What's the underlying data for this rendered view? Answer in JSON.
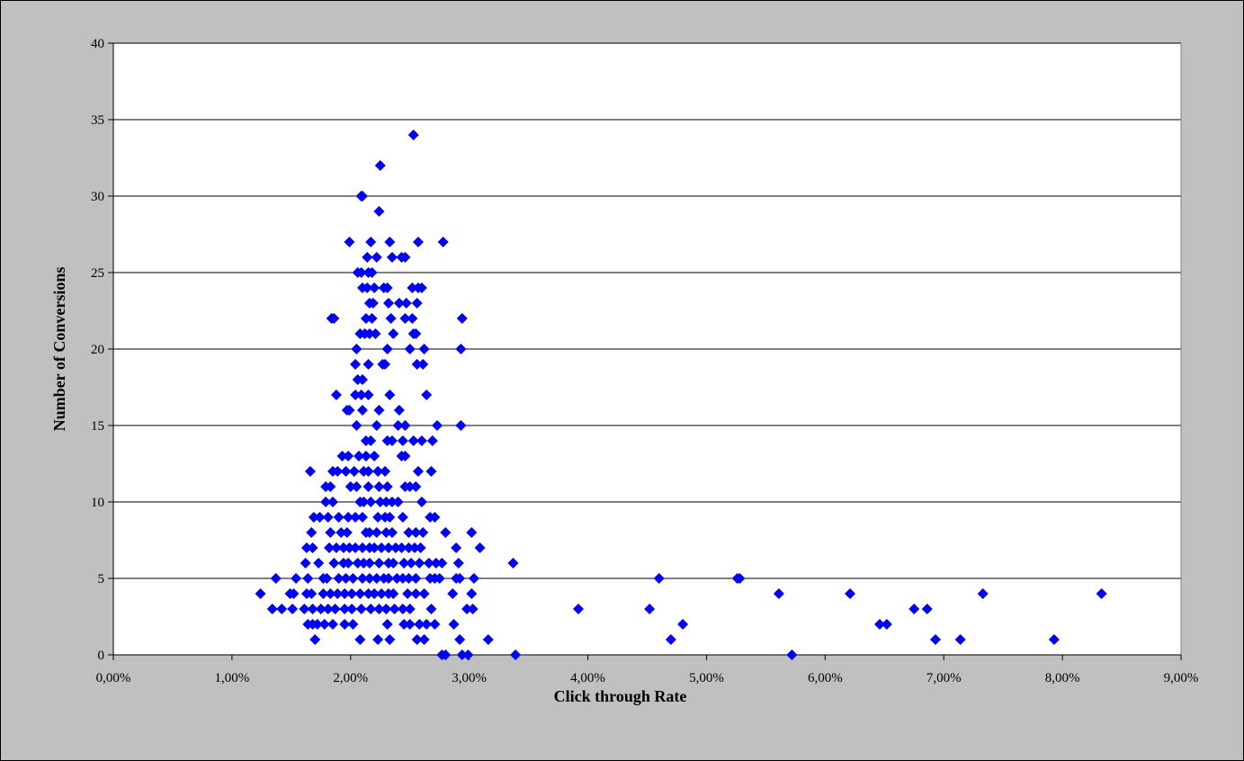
{
  "chart_data": {
    "type": "scatter",
    "title": "",
    "xlabel": "Click through Rate",
    "ylabel": "Number of Conversions",
    "xlim": [
      0,
      9
    ],
    "ylim": [
      0,
      40
    ],
    "x_unit": "percent",
    "x_ticks": [
      "0,00%",
      "1,00%",
      "2,00%",
      "3,00%",
      "4,00%",
      "5,00%",
      "6,00%",
      "7,00%",
      "8,00%",
      "9,00%"
    ],
    "y_ticks": [
      "0",
      "5",
      "10",
      "15",
      "20",
      "25",
      "30",
      "35",
      "40"
    ],
    "grid": "horizontal",
    "legend": "none",
    "marker": "diamond",
    "colors": {
      "marker": "#0000ff",
      "plot_bg": "#ffffff",
      "page_bg": "#c0c0c0",
      "grid": "#000000"
    },
    "series": [
      {
        "points": [
          [
            2.53,
            34
          ],
          [
            2.25,
            32
          ],
          [
            2.09,
            30
          ],
          [
            2.1,
            30
          ],
          [
            2.24,
            29
          ],
          [
            1.99,
            27
          ],
          [
            2.17,
            27
          ],
          [
            2.33,
            27
          ],
          [
            2.57,
            27
          ],
          [
            2.78,
            27
          ],
          [
            2.14,
            26
          ],
          [
            2.22,
            26
          ],
          [
            2.35,
            26
          ],
          [
            2.43,
            26
          ],
          [
            2.46,
            26
          ],
          [
            2.06,
            25
          ],
          [
            2.09,
            25
          ],
          [
            2.15,
            25
          ],
          [
            2.18,
            25
          ],
          [
            2.1,
            24
          ],
          [
            2.14,
            24
          ],
          [
            2.2,
            24
          ],
          [
            2.28,
            24
          ],
          [
            2.31,
            24
          ],
          [
            2.52,
            24
          ],
          [
            2.57,
            24
          ],
          [
            2.6,
            24
          ],
          [
            2.16,
            23
          ],
          [
            2.19,
            23
          ],
          [
            2.32,
            23
          ],
          [
            2.41,
            23
          ],
          [
            2.47,
            23
          ],
          [
            2.56,
            23
          ],
          [
            1.84,
            22
          ],
          [
            1.86,
            22
          ],
          [
            2.13,
            22
          ],
          [
            2.18,
            22
          ],
          [
            2.34,
            22
          ],
          [
            2.46,
            22
          ],
          [
            2.52,
            22
          ],
          [
            2.94,
            22
          ],
          [
            2.08,
            21
          ],
          [
            2.12,
            21
          ],
          [
            2.16,
            21
          ],
          [
            2.21,
            21
          ],
          [
            2.36,
            21
          ],
          [
            2.53,
            21
          ],
          [
            2.55,
            21
          ],
          [
            2.05,
            20
          ],
          [
            2.31,
            20
          ],
          [
            2.5,
            20
          ],
          [
            2.62,
            20
          ],
          [
            2.93,
            20
          ],
          [
            2.04,
            19
          ],
          [
            2.15,
            19
          ],
          [
            2.27,
            19
          ],
          [
            2.29,
            19
          ],
          [
            2.56,
            19
          ],
          [
            2.61,
            19
          ],
          [
            2.06,
            18
          ],
          [
            2.1,
            18
          ],
          [
            1.88,
            17
          ],
          [
            2.04,
            17
          ],
          [
            2.09,
            17
          ],
          [
            2.15,
            17
          ],
          [
            2.33,
            17
          ],
          [
            2.64,
            17
          ],
          [
            1.97,
            16
          ],
          [
            1.99,
            16
          ],
          [
            2.1,
            16
          ],
          [
            2.24,
            16
          ],
          [
            2.41,
            16
          ],
          [
            2.05,
            15
          ],
          [
            2.22,
            15
          ],
          [
            2.4,
            15
          ],
          [
            2.46,
            15
          ],
          [
            2.73,
            15
          ],
          [
            2.93,
            15
          ],
          [
            2.13,
            14
          ],
          [
            2.17,
            14
          ],
          [
            2.31,
            14
          ],
          [
            2.35,
            14
          ],
          [
            2.44,
            14
          ],
          [
            2.53,
            14
          ],
          [
            2.6,
            14
          ],
          [
            2.69,
            14
          ],
          [
            1.93,
            13
          ],
          [
            1.98,
            13
          ],
          [
            2.07,
            13
          ],
          [
            2.13,
            13
          ],
          [
            2.2,
            13
          ],
          [
            2.43,
            13
          ],
          [
            2.46,
            13
          ],
          [
            1.66,
            12
          ],
          [
            1.85,
            12
          ],
          [
            1.89,
            12
          ],
          [
            1.96,
            12
          ],
          [
            2.03,
            12
          ],
          [
            2.11,
            12
          ],
          [
            2.15,
            12
          ],
          [
            2.23,
            12
          ],
          [
            2.29,
            12
          ],
          [
            2.57,
            12
          ],
          [
            2.68,
            12
          ],
          [
            1.79,
            11
          ],
          [
            1.83,
            11
          ],
          [
            2.0,
            11
          ],
          [
            2.05,
            11
          ],
          [
            2.15,
            11
          ],
          [
            2.24,
            11
          ],
          [
            2.31,
            11
          ],
          [
            2.46,
            11
          ],
          [
            2.5,
            11
          ],
          [
            2.55,
            11
          ],
          [
            1.79,
            10
          ],
          [
            1.85,
            10
          ],
          [
            2.08,
            10
          ],
          [
            2.11,
            10
          ],
          [
            2.17,
            10
          ],
          [
            2.25,
            10
          ],
          [
            2.3,
            10
          ],
          [
            2.35,
            10
          ],
          [
            2.4,
            10
          ],
          [
            2.6,
            10
          ],
          [
            1.69,
            9
          ],
          [
            1.74,
            9
          ],
          [
            1.81,
            9
          ],
          [
            1.9,
            9
          ],
          [
            1.98,
            9
          ],
          [
            2.04,
            9
          ],
          [
            2.1,
            9
          ],
          [
            2.23,
            9
          ],
          [
            2.29,
            9
          ],
          [
            2.33,
            9
          ],
          [
            2.44,
            9
          ],
          [
            2.67,
            9
          ],
          [
            2.71,
            9
          ],
          [
            1.67,
            8
          ],
          [
            1.83,
            8
          ],
          [
            1.92,
            8
          ],
          [
            1.97,
            8
          ],
          [
            2.13,
            8
          ],
          [
            2.16,
            8
          ],
          [
            2.22,
            8
          ],
          [
            2.3,
            8
          ],
          [
            2.35,
            8
          ],
          [
            2.49,
            8
          ],
          [
            2.55,
            8
          ],
          [
            2.61,
            8
          ],
          [
            2.8,
            8
          ],
          [
            3.02,
            8
          ],
          [
            1.63,
            7
          ],
          [
            1.68,
            7
          ],
          [
            1.82,
            7
          ],
          [
            1.88,
            7
          ],
          [
            1.94,
            7
          ],
          [
            1.99,
            7
          ],
          [
            2.04,
            7
          ],
          [
            2.1,
            7
          ],
          [
            2.16,
            7
          ],
          [
            2.2,
            7
          ],
          [
            2.26,
            7
          ],
          [
            2.32,
            7
          ],
          [
            2.38,
            7
          ],
          [
            2.43,
            7
          ],
          [
            2.49,
            7
          ],
          [
            2.54,
            7
          ],
          [
            2.59,
            7
          ],
          [
            2.89,
            7
          ],
          [
            3.09,
            7
          ],
          [
            1.62,
            6
          ],
          [
            1.73,
            6
          ],
          [
            1.86,
            6
          ],
          [
            1.94,
            6
          ],
          [
            1.98,
            6
          ],
          [
            2.06,
            6
          ],
          [
            2.11,
            6
          ],
          [
            2.16,
            6
          ],
          [
            2.24,
            6
          ],
          [
            2.32,
            6
          ],
          [
            2.36,
            6
          ],
          [
            2.45,
            6
          ],
          [
            2.51,
            6
          ],
          [
            2.58,
            6
          ],
          [
            2.66,
            6
          ],
          [
            2.72,
            6
          ],
          [
            2.77,
            6
          ],
          [
            2.91,
            6
          ],
          [
            3.37,
            6
          ],
          [
            1.37,
            5
          ],
          [
            1.54,
            5
          ],
          [
            1.64,
            5
          ],
          [
            1.77,
            5
          ],
          [
            1.8,
            5
          ],
          [
            1.9,
            5
          ],
          [
            1.96,
            5
          ],
          [
            2.02,
            5
          ],
          [
            2.1,
            5
          ],
          [
            2.16,
            5
          ],
          [
            2.22,
            5
          ],
          [
            2.28,
            5
          ],
          [
            2.32,
            5
          ],
          [
            2.39,
            5
          ],
          [
            2.44,
            5
          ],
          [
            2.49,
            5
          ],
          [
            2.55,
            5
          ],
          [
            2.67,
            5
          ],
          [
            2.71,
            5
          ],
          [
            2.75,
            5
          ],
          [
            2.89,
            5
          ],
          [
            2.92,
            5
          ],
          [
            3.04,
            5
          ],
          [
            4.6,
            5
          ],
          [
            5.26,
            5
          ],
          [
            5.28,
            5
          ],
          [
            1.24,
            4
          ],
          [
            1.49,
            4
          ],
          [
            1.52,
            4
          ],
          [
            1.63,
            4
          ],
          [
            1.67,
            4
          ],
          [
            1.77,
            4
          ],
          [
            1.83,
            4
          ],
          [
            1.89,
            4
          ],
          [
            1.95,
            4
          ],
          [
            2.01,
            4
          ],
          [
            2.08,
            4
          ],
          [
            2.15,
            4
          ],
          [
            2.2,
            4
          ],
          [
            2.26,
            4
          ],
          [
            2.32,
            4
          ],
          [
            2.36,
            4
          ],
          [
            2.48,
            4
          ],
          [
            2.55,
            4
          ],
          [
            2.62,
            4
          ],
          [
            2.86,
            4
          ],
          [
            3.02,
            4
          ],
          [
            5.61,
            4
          ],
          [
            6.21,
            4
          ],
          [
            7.33,
            4
          ],
          [
            8.33,
            4
          ],
          [
            1.34,
            3
          ],
          [
            1.42,
            3
          ],
          [
            1.51,
            3
          ],
          [
            1.61,
            3
          ],
          [
            1.68,
            3
          ],
          [
            1.75,
            3
          ],
          [
            1.81,
            3
          ],
          [
            1.87,
            3
          ],
          [
            1.95,
            3
          ],
          [
            2.01,
            3
          ],
          [
            2.09,
            3
          ],
          [
            2.17,
            3
          ],
          [
            2.24,
            3
          ],
          [
            2.3,
            3
          ],
          [
            2.37,
            3
          ],
          [
            2.44,
            3
          ],
          [
            2.5,
            3
          ],
          [
            2.68,
            3
          ],
          [
            2.98,
            3
          ],
          [
            3.03,
            3
          ],
          [
            3.92,
            3
          ],
          [
            4.52,
            3
          ],
          [
            6.75,
            3
          ],
          [
            6.86,
            3
          ],
          [
            1.64,
            2
          ],
          [
            1.68,
            2
          ],
          [
            1.72,
            2
          ],
          [
            1.78,
            2
          ],
          [
            1.85,
            2
          ],
          [
            1.95,
            2
          ],
          [
            2.02,
            2
          ],
          [
            2.31,
            2
          ],
          [
            2.45,
            2
          ],
          [
            2.5,
            2
          ],
          [
            2.58,
            2
          ],
          [
            2.64,
            2
          ],
          [
            2.71,
            2
          ],
          [
            2.87,
            2
          ],
          [
            4.8,
            2
          ],
          [
            6.46,
            2
          ],
          [
            6.52,
            2
          ],
          [
            1.7,
            1
          ],
          [
            2.08,
            1
          ],
          [
            2.23,
            1
          ],
          [
            2.33,
            1
          ],
          [
            2.56,
            1
          ],
          [
            2.62,
            1
          ],
          [
            2.92,
            1
          ],
          [
            3.16,
            1
          ],
          [
            4.7,
            1
          ],
          [
            6.93,
            1
          ],
          [
            7.14,
            1
          ],
          [
            7.93,
            1
          ],
          [
            2.77,
            0
          ],
          [
            2.8,
            0
          ],
          [
            2.94,
            0
          ],
          [
            2.99,
            0
          ],
          [
            3.39,
            0
          ],
          [
            5.72,
            0
          ]
        ]
      }
    ]
  }
}
